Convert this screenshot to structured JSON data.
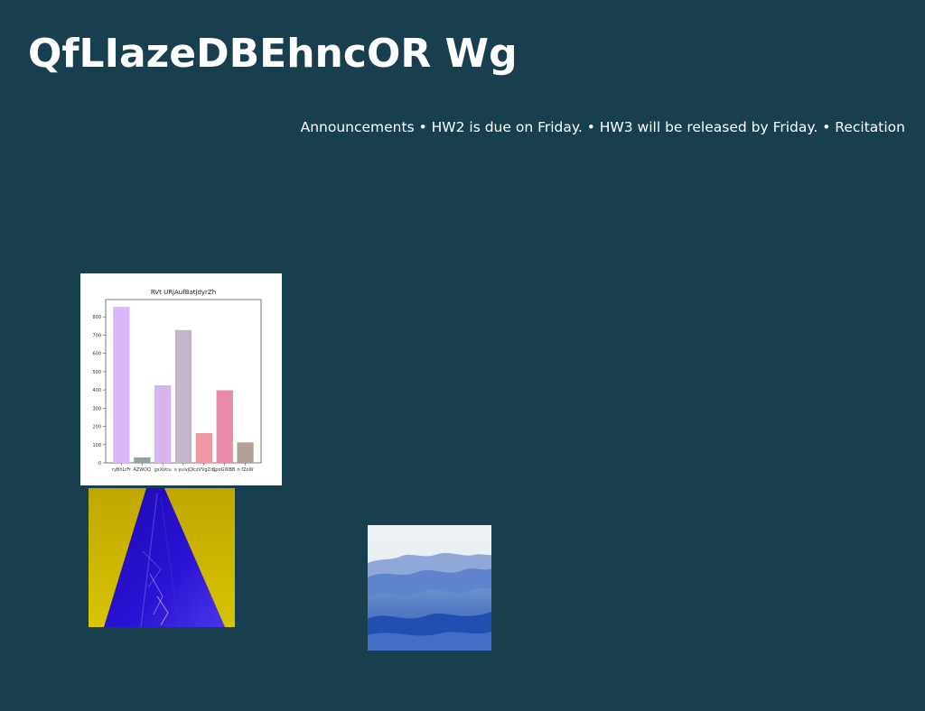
{
  "page": {
    "title": "QfLIazeDBEhncOR Wg",
    "announcement": "Announcements • HW2 is due on Friday. • HW3 will be released by Friday. • Recitation"
  },
  "colors": {
    "background": "#183f4e",
    "text": "#ffffff"
  },
  "images": [
    {
      "name": "yellow-blue-triangle-image"
    },
    {
      "name": "blue-dunes-image"
    }
  ],
  "chart_data": {
    "type": "bar",
    "title": "RVt URjAufBatjdyrZh",
    "categories": [
      "ryBhLrFr",
      "AZWOQ",
      "gxXvtiu",
      "s yulvjQ",
      "lczVVgZdL",
      "jpoGWBB",
      "n fZoW"
    ],
    "values": [
      855,
      30,
      425,
      728,
      163,
      398,
      112
    ],
    "colors": [
      "#d9b8f7",
      "#8da4a6",
      "#d6b4f0",
      "#c2b6c8",
      "#ee98a2",
      "#e88aa8",
      "#b1a19a"
    ],
    "yticks": [
      0,
      100,
      200,
      300,
      400,
      500,
      600,
      700,
      800
    ],
    "ylim": [
      0,
      895
    ],
    "grid": false,
    "legend": "none"
  }
}
